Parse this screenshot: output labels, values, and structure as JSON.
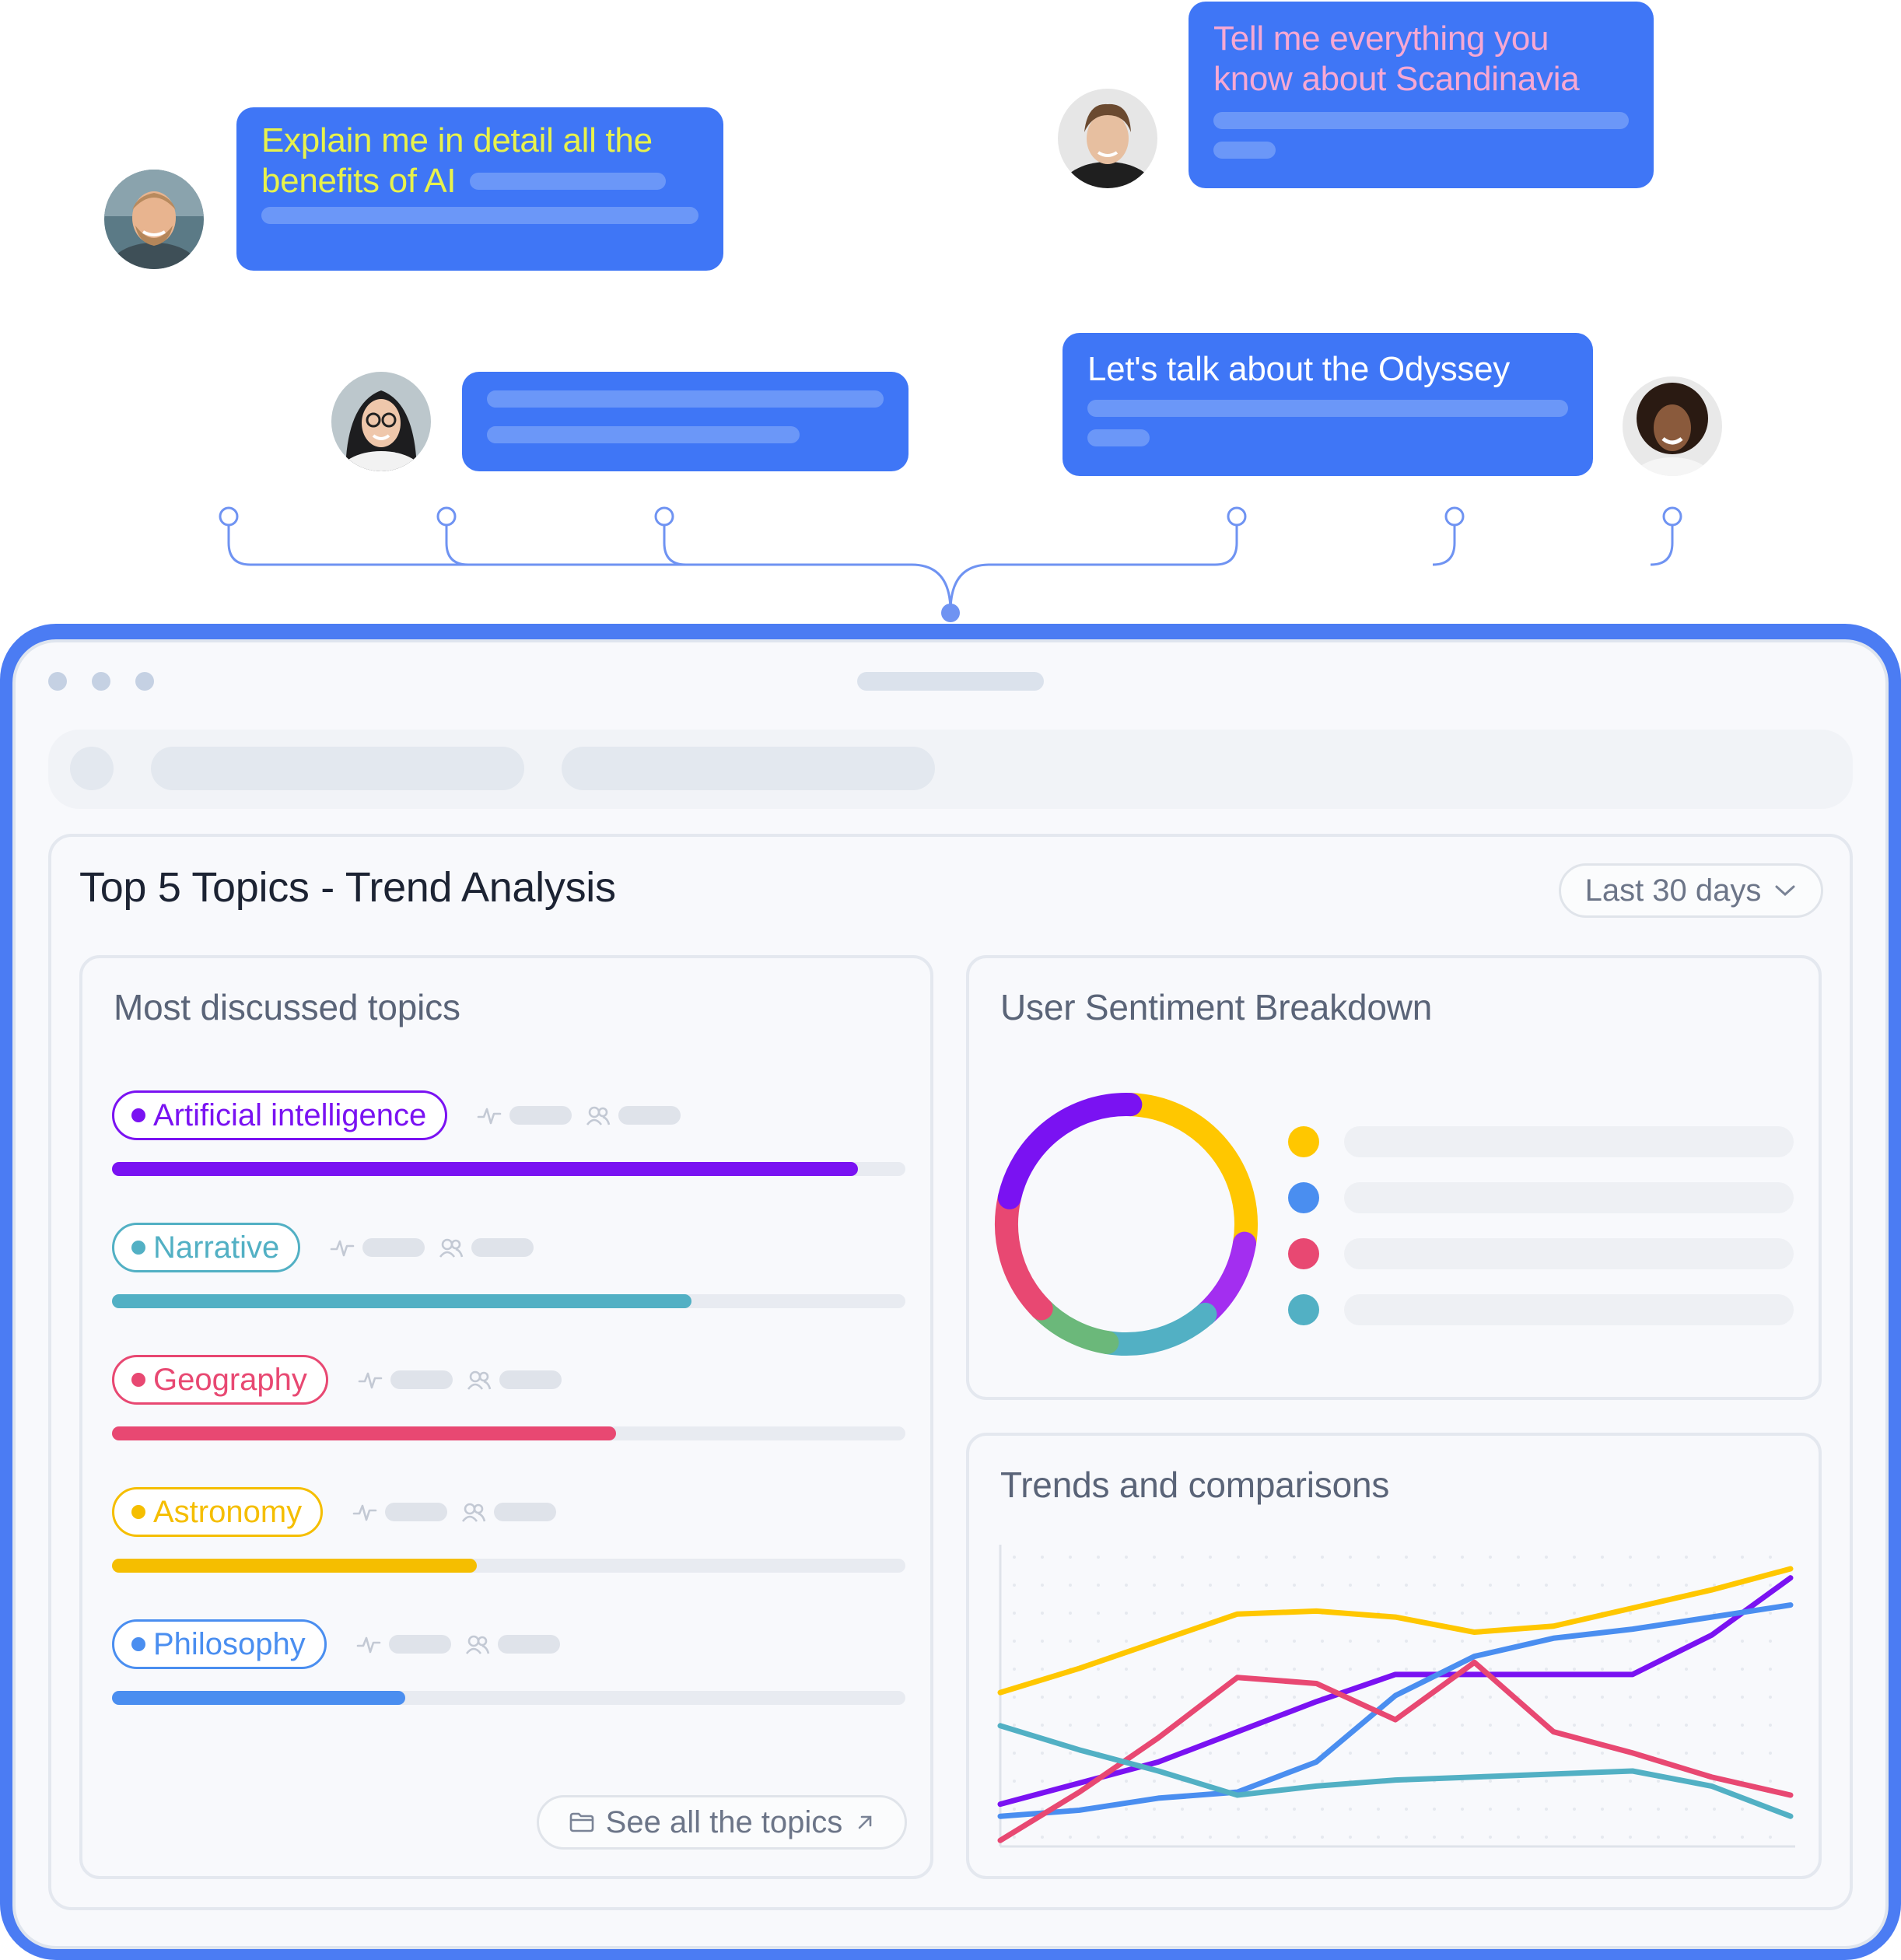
{
  "chats": [
    {
      "text_line1": "Explain me in detail all the",
      "text_line2": "benefits of AI",
      "text_color": "#e8f24b"
    },
    {
      "text_line1": "Tell me everything you",
      "text_line2": "know about Scandinavia",
      "text_color": "#f7a8d3"
    },
    {
      "text": "Let's talk about the Odyssey",
      "text_color": "#ffffff"
    }
  ],
  "dashboard": {
    "title": "Top 5 Topics - Trend Analysis",
    "range_select": {
      "value": "Last 30 days"
    },
    "topics_card": {
      "title": "Most discussed topics",
      "topics": [
        {
          "label": "Artificial intelligence",
          "color": "#7a12f2",
          "share": 0.94
        },
        {
          "label": "Narrative",
          "color": "#52b0c4",
          "share": 0.73
        },
        {
          "label": "Geography",
          "color": "#e84872",
          "share": 0.635
        },
        {
          "label": "Astronomy",
          "color": "#f5be00",
          "share": 0.46
        },
        {
          "label": "Philosophy",
          "color": "#4a8ef0",
          "share": 0.37
        }
      ],
      "see_all_label": "See all the topics"
    },
    "sentiment_card": {
      "title": "User Sentiment Breakdown",
      "donut_segments": [
        {
          "color": "#ffc700",
          "value": 27
        },
        {
          "color": "#a32ef0",
          "value": 11
        },
        {
          "color": "#52b0c4",
          "value": 14
        },
        {
          "color": "#6bb87a",
          "value": 10
        },
        {
          "color": "#e84872",
          "value": 16
        },
        {
          "color": "#7a12f2",
          "value": 22
        }
      ],
      "legend_colors": [
        "#ffc700",
        "#4a8ef0",
        "#e84872",
        "#52b0c4"
      ]
    },
    "trends_card": {
      "title": "Trends and comparisons"
    }
  },
  "chart_data": {
    "type": "line",
    "x": [
      0,
      1,
      2,
      3,
      4,
      5,
      6,
      7,
      8,
      9,
      10
    ],
    "series": [
      {
        "color": "#ffc700",
        "values": [
          51,
          59,
          68,
          77,
          78,
          76,
          71,
          73,
          79,
          85,
          92
        ]
      },
      {
        "color": "#7a12f2",
        "values": [
          14,
          21,
          28,
          38,
          48,
          57,
          57,
          57,
          57,
          70,
          89
        ]
      },
      {
        "color": "#4a8ef0",
        "values": [
          10,
          12,
          16,
          18,
          28,
          50,
          63,
          69,
          72,
          76,
          80
        ]
      },
      {
        "color": "#e84872",
        "values": [
          2,
          18,
          36,
          56,
          54,
          42,
          61,
          38,
          31,
          23,
          17
        ]
      },
      {
        "color": "#52b0c4",
        "values": [
          40,
          32,
          25,
          17,
          20,
          22,
          23,
          24,
          25,
          20,
          10
        ]
      }
    ],
    "ylim": [
      0,
      100
    ],
    "grid": "dotted"
  }
}
